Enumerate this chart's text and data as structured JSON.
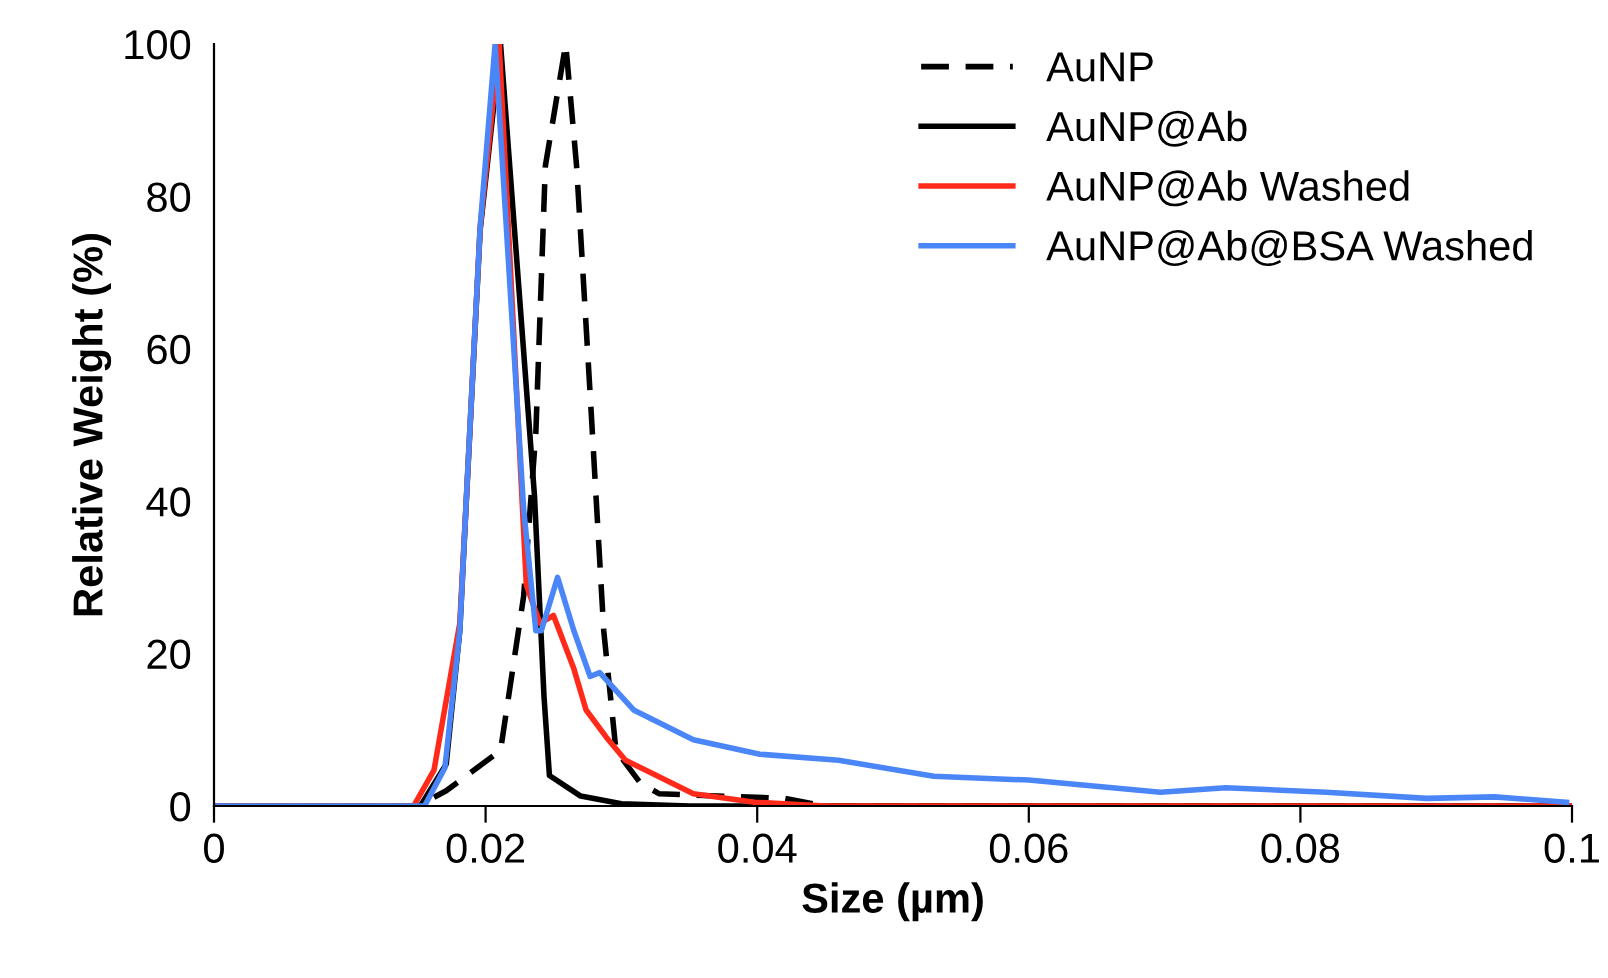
{
  "chart_data": {
    "type": "line",
    "xlabel": "Size (µm)",
    "ylabel": "Relative Weight (%)",
    "xlim": [
      0,
      0.1
    ],
    "ylim": [
      0,
      100
    ],
    "xticks": [
      0,
      0.02,
      0.04,
      0.06,
      0.08,
      0.1
    ],
    "yticks": [
      0,
      20,
      40,
      60,
      80,
      100
    ],
    "grid": false,
    "legend": "top right",
    "marker": "none",
    "series": [
      {
        "name": "AuNP",
        "color": "#000000",
        "line_style": "dashed",
        "x": [
          0.0,
          0.015,
          0.0171,
          0.0211,
          0.0228,
          0.0237,
          0.0244,
          0.0259,
          0.0267,
          0.0277,
          0.0287,
          0.0296,
          0.0314,
          0.0328,
          0.042,
          0.045,
          0.1
        ],
        "values": [
          0,
          0,
          2,
          7.3,
          27.5,
          49,
          84,
          100,
          84,
          54,
          23,
          7.3,
          3,
          1.6,
          1,
          0,
          0
        ]
      },
      {
        "name": "AuNP@Ab",
        "color": "#000000",
        "line_style": "solid",
        "x": [
          0.0,
          0.0152,
          0.0171,
          0.0181,
          0.0186,
          0.0196,
          0.0211,
          0.0236,
          0.0243,
          0.0247,
          0.027,
          0.03,
          0.035,
          0.1
        ],
        "values": [
          0,
          0,
          5.5,
          23,
          40.7,
          75.6,
          100,
          40.7,
          14.4,
          4,
          1.3,
          0.3,
          0,
          0
        ]
      },
      {
        "name": "AuNP@Ab Washed",
        "color": "#ff2a1a",
        "line_style": "solid",
        "x": [
          0.0,
          0.0147,
          0.0162,
          0.0181,
          0.0186,
          0.0196,
          0.021,
          0.023,
          0.024,
          0.025,
          0.0265,
          0.0274,
          0.0289,
          0.0303,
          0.0318,
          0.0353,
          0.0398,
          0.045,
          0.1
        ],
        "values": [
          0,
          0,
          4.7,
          24,
          41,
          76,
          100,
          29,
          24,
          25,
          18,
          12.6,
          9,
          6,
          4.7,
          1.6,
          0.5,
          0,
          0
        ]
      },
      {
        "name": "AuNP@Ab@BSA Washed",
        "color": "#4a86f7",
        "line_style": "solid",
        "x": [
          0.0,
          0.0155,
          0.017,
          0.0181,
          0.0186,
          0.0196,
          0.0207,
          0.0228,
          0.0237,
          0.0241,
          0.0253,
          0.0265,
          0.0277,
          0.0284,
          0.0309,
          0.0353,
          0.0402,
          0.046,
          0.053,
          0.06,
          0.0697,
          0.0745,
          0.0819,
          0.0893,
          0.0943,
          0.0996
        ],
        "values": [
          0,
          0,
          5,
          23,
          41,
          76,
          100,
          39,
          23,
          23,
          30,
          23,
          17,
          17.5,
          12.6,
          8.7,
          6.8,
          6,
          3.9,
          3.4,
          1.8,
          2.4,
          1.8,
          1.0,
          1.2,
          0.5
        ]
      }
    ]
  }
}
